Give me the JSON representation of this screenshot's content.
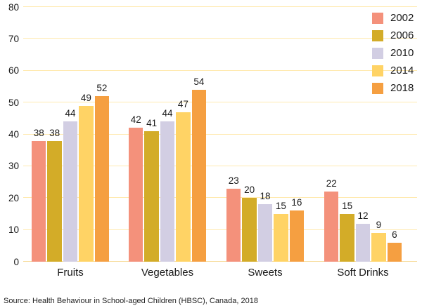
{
  "chart_data": {
    "type": "bar",
    "title": "",
    "xlabel": "",
    "ylabel": "",
    "categories": [
      "Fruits",
      "Vegetables",
      "Sweets",
      "Soft Drinks"
    ],
    "series": [
      {
        "name": "2002",
        "color": "#f4917b",
        "values": [
          38,
          42,
          23,
          22
        ]
      },
      {
        "name": "2006",
        "color": "#d3ac28",
        "values": [
          38,
          41,
          20,
          15
        ]
      },
      {
        "name": "2010",
        "color": "#d2cee3",
        "values": [
          44,
          44,
          18,
          12
        ]
      },
      {
        "name": "2014",
        "color": "#ffd365",
        "values": [
          49,
          47,
          15,
          9
        ]
      },
      {
        "name": "2018",
        "color": "#f59f41",
        "values": [
          52,
          54,
          16,
          6
        ]
      }
    ],
    "ylim": [
      0,
      80
    ],
    "yticks": [
      0,
      10,
      20,
      30,
      40,
      50,
      60,
      70,
      80
    ],
    "grid": true,
    "gridline_color": "#ffeab0",
    "baseline_color": "#f6d992",
    "legend_position": "top-right",
    "value_labels": true
  },
  "source_note": "Source: Health Behaviour in School-aged Children (HBSC), Canada, 2018"
}
